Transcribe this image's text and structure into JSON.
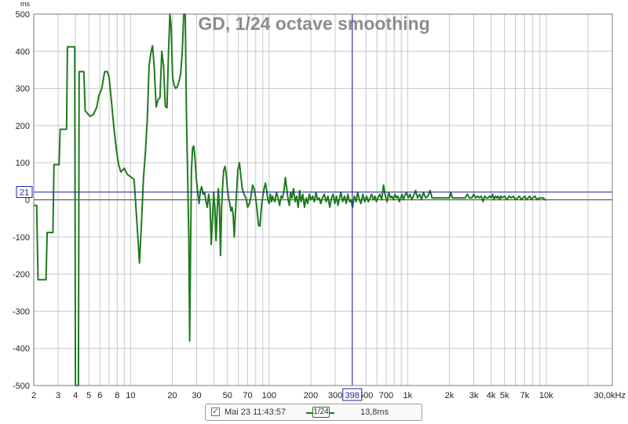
{
  "chart_data": {
    "type": "line",
    "title": "GD, 1/24 octave smoothing",
    "y_unit": "ms",
    "x_unit": "Hz",
    "xscale": "log",
    "xlim": [
      2,
      30000
    ],
    "ylim": [
      -500,
      500
    ],
    "grid": true,
    "y_ticks": [
      500,
      400,
      300,
      200,
      100,
      0,
      -100,
      -200,
      -300,
      -400,
      -500
    ],
    "y_tick_labels": [
      "500",
      "400",
      "300",
      "200",
      "100",
      "0",
      "-100",
      "-200",
      "-300",
      "-400",
      "-500"
    ],
    "x_ticks": [
      {
        "v": 2,
        "label": "2"
      },
      {
        "v": 3,
        "label": "3"
      },
      {
        "v": 4,
        "label": "4"
      },
      {
        "v": 5,
        "label": "5"
      },
      {
        "v": 6,
        "label": "6"
      },
      {
        "v": 8,
        "label": "8"
      },
      {
        "v": 10,
        "label": "10"
      },
      {
        "v": 20,
        "label": "20"
      },
      {
        "v": 30,
        "label": "30"
      },
      {
        "v": 50,
        "label": "50"
      },
      {
        "v": 70,
        "label": "70"
      },
      {
        "v": 100,
        "label": "100"
      },
      {
        "v": 200,
        "label": "200"
      },
      {
        "v": 300,
        "label": "300"
      },
      {
        "v": 500,
        "label": "500"
      },
      {
        "v": 700,
        "label": "700"
      },
      {
        "v": 1000,
        "label": "1k"
      },
      {
        "v": 2000,
        "label": "2k"
      },
      {
        "v": 3000,
        "label": "3k"
      },
      {
        "v": 4000,
        "label": "4k"
      },
      {
        "v": 5000,
        "label": "5k"
      },
      {
        "v": 7000,
        "label": "7k"
      },
      {
        "v": 10000,
        "label": "10k"
      },
      {
        "v": 30000,
        "label": "30,0kHz"
      }
    ],
    "cursor": {
      "x": 398,
      "y": 21,
      "x_label": "398",
      "y_label": "21"
    },
    "series": [
      {
        "name": "1/24",
        "color": "#1f7a1f",
        "points": [
          [
            2.0,
            -15
          ],
          [
            2.1,
            -15
          ],
          [
            2.15,
            -215
          ],
          [
            2.3,
            -215
          ],
          [
            2.45,
            -215
          ],
          [
            2.5,
            -88
          ],
          [
            2.75,
            -88
          ],
          [
            2.8,
            95
          ],
          [
            3.05,
            95
          ],
          [
            3.1,
            190
          ],
          [
            3.45,
            190
          ],
          [
            3.5,
            412
          ],
          [
            3.85,
            412
          ],
          [
            3.95,
            412
          ],
          [
            4.0,
            -500
          ],
          [
            4.2,
            -500
          ],
          [
            4.25,
            345
          ],
          [
            4.6,
            345
          ],
          [
            4.7,
            240
          ],
          [
            4.9,
            232
          ],
          [
            5.1,
            225
          ],
          [
            5.4,
            230
          ],
          [
            5.7,
            250
          ],
          [
            5.9,
            280
          ],
          [
            6.2,
            300
          ],
          [
            6.5,
            345
          ],
          [
            6.8,
            345
          ],
          [
            7.0,
            330
          ],
          [
            7.3,
            260
          ],
          [
            7.6,
            190
          ],
          [
            7.9,
            135
          ],
          [
            8.2,
            95
          ],
          [
            8.5,
            75
          ],
          [
            9.0,
            85
          ],
          [
            9.5,
            68
          ],
          [
            10.0,
            62
          ],
          [
            10.6,
            55
          ],
          [
            11.2,
            -80
          ],
          [
            11.6,
            -170
          ],
          [
            12.0,
            -60
          ],
          [
            12.4,
            60
          ],
          [
            12.8,
            130
          ],
          [
            13.2,
            215
          ],
          [
            13.6,
            360
          ],
          [
            14.0,
            395
          ],
          [
            14.4,
            415
          ],
          [
            14.8,
            360
          ],
          [
            15.3,
            250
          ],
          [
            15.8,
            270
          ],
          [
            16.3,
            275
          ],
          [
            16.8,
            400
          ],
          [
            17.3,
            360
          ],
          [
            17.8,
            252
          ],
          [
            18.3,
            248
          ],
          [
            18.8,
            400
          ],
          [
            19.2,
            500
          ],
          [
            19.6,
            470
          ],
          [
            20.1,
            330
          ],
          [
            20.6,
            310
          ],
          [
            21.1,
            300
          ],
          [
            21.8,
            305
          ],
          [
            22.4,
            320
          ],
          [
            23.0,
            340
          ],
          [
            23.6,
            400
          ],
          [
            24.2,
            500
          ],
          [
            24.8,
            500
          ],
          [
            25.3,
            230
          ],
          [
            25.8,
            70
          ],
          [
            26.3,
            -100
          ],
          [
            26.7,
            -380
          ],
          [
            27.1,
            -120
          ],
          [
            27.5,
            80
          ],
          [
            28.0,
            140
          ],
          [
            28.6,
            145
          ],
          [
            29.2,
            110
          ],
          [
            29.8,
            60
          ],
          [
            30.5,
            20
          ],
          [
            31.2,
            -10
          ],
          [
            31.9,
            25
          ],
          [
            32.6,
            35
          ],
          [
            33.4,
            15
          ],
          [
            34.2,
            20
          ],
          [
            35.0,
            -5
          ],
          [
            35.8,
            -20
          ],
          [
            36.6,
            15
          ],
          [
            37.4,
            -10
          ],
          [
            38.2,
            -120
          ],
          [
            39.0,
            -50
          ],
          [
            39.8,
            20
          ],
          [
            40.6,
            -20
          ],
          [
            41.4,
            -110
          ],
          [
            42.2,
            -30
          ],
          [
            43.0,
            30
          ],
          [
            43.8,
            -20
          ],
          [
            44.6,
            -150
          ],
          [
            45.4,
            -20
          ],
          [
            46.2,
            40
          ],
          [
            47.0,
            80
          ],
          [
            48.0,
            90
          ],
          [
            49.0,
            70
          ],
          [
            50.0,
            30
          ],
          [
            51.0,
            5
          ],
          [
            52.0,
            -10
          ],
          [
            53.0,
            -30
          ],
          [
            54.0,
            -20
          ],
          [
            55.0,
            -40
          ],
          [
            56.0,
            -100
          ],
          [
            57.0,
            -40
          ],
          [
            58.0,
            10
          ],
          [
            59.5,
            80
          ],
          [
            61.0,
            100
          ],
          [
            62.5,
            65
          ],
          [
            64.0,
            30
          ],
          [
            66.0,
            15
          ],
          [
            68.0,
            5
          ],
          [
            70.0,
            -20
          ],
          [
            72.0,
            -10
          ],
          [
            74.0,
            10
          ],
          [
            76.0,
            40
          ],
          [
            78.0,
            30
          ],
          [
            80.0,
            5
          ],
          [
            82.0,
            -30
          ],
          [
            84.0,
            -70
          ],
          [
            86.0,
            -70
          ],
          [
            88.0,
            -20
          ],
          [
            90.0,
            10
          ],
          [
            92.0,
            30
          ],
          [
            94.0,
            45
          ],
          [
            96.0,
            25
          ],
          [
            98.0,
            0
          ],
          [
            100.0,
            -10
          ],
          [
            102.0,
            15
          ],
          [
            104.0,
            -5
          ],
          [
            106.0,
            10
          ],
          [
            108.0,
            0
          ],
          [
            110.0,
            -5
          ],
          [
            113.0,
            20
          ],
          [
            116.0,
            5
          ],
          [
            119.0,
            -15
          ],
          [
            122.0,
            10
          ],
          [
            125.0,
            5
          ],
          [
            128.0,
            25
          ],
          [
            131.0,
            60
          ],
          [
            134.0,
            30
          ],
          [
            137.0,
            0
          ],
          [
            140.0,
            -15
          ],
          [
            143.0,
            20
          ],
          [
            146.0,
            5
          ],
          [
            150.0,
            30
          ],
          [
            154.0,
            -5
          ],
          [
            158.0,
            10
          ],
          [
            162.0,
            -20
          ],
          [
            166.0,
            25
          ],
          [
            170.0,
            -5
          ],
          [
            175.0,
            15
          ],
          [
            180.0,
            -20
          ],
          [
            185.0,
            5
          ],
          [
            190.0,
            -10
          ],
          [
            195.0,
            15
          ],
          [
            200.0,
            0
          ],
          [
            206.0,
            10
          ],
          [
            212.0,
            -5
          ],
          [
            218.0,
            20
          ],
          [
            224.0,
            0
          ],
          [
            230.0,
            5
          ],
          [
            236.0,
            -10
          ],
          [
            242.0,
            5
          ],
          [
            250.0,
            15
          ],
          [
            258.0,
            -5
          ],
          [
            266.0,
            10
          ],
          [
            274.0,
            -20
          ],
          [
            282.0,
            5
          ],
          [
            290.0,
            15
          ],
          [
            298.0,
            -10
          ],
          [
            306.0,
            10
          ],
          [
            314.0,
            -15
          ],
          [
            322.0,
            5
          ],
          [
            330.0,
            20
          ],
          [
            340.0,
            -5
          ],
          [
            350.0,
            10
          ],
          [
            360.0,
            -10
          ],
          [
            370.0,
            15
          ],
          [
            380.0,
            -5
          ],
          [
            390.0,
            0
          ],
          [
            400.0,
            -20
          ],
          [
            412.0,
            10
          ],
          [
            424.0,
            -5
          ],
          [
            436.0,
            20
          ],
          [
            448.0,
            0
          ],
          [
            460.0,
            -10
          ],
          [
            475.0,
            15
          ],
          [
            490.0,
            -5
          ],
          [
            505.0,
            10
          ],
          [
            520.0,
            -5
          ],
          [
            535.0,
            5
          ],
          [
            550.0,
            15
          ],
          [
            565.0,
            0
          ],
          [
            580.0,
            10
          ],
          [
            595.0,
            -5
          ],
          [
            610.0,
            5
          ],
          [
            630.0,
            15
          ],
          [
            650.0,
            0
          ],
          [
            670.0,
            40
          ],
          [
            690.0,
            10
          ],
          [
            710.0,
            -5
          ],
          [
            730.0,
            20
          ],
          [
            750.0,
            5
          ],
          [
            770.0,
            10
          ],
          [
            790.0,
            0
          ],
          [
            810.0,
            15
          ],
          [
            830.0,
            5
          ],
          [
            850.0,
            10
          ],
          [
            870.0,
            -5
          ],
          [
            890.0,
            5
          ],
          [
            910.0,
            15
          ],
          [
            930.0,
            0
          ],
          [
            950.0,
            10
          ],
          [
            980.0,
            20
          ],
          [
            1010.0,
            5
          ],
          [
            1040.0,
            15
          ],
          [
            1070.0,
            0
          ],
          [
            1100.0,
            10
          ],
          [
            1140.0,
            25
          ],
          [
            1180.0,
            5
          ],
          [
            1220.0,
            15
          ],
          [
            1260.0,
            0
          ],
          [
            1300.0,
            20
          ],
          [
            1350.0,
            5
          ],
          [
            1400.0,
            10
          ],
          [
            1450.0,
            25
          ],
          [
            1500.0,
            5
          ],
          [
            1560.0,
            5
          ],
          [
            1620.0,
            5
          ],
          [
            1700.0,
            5
          ],
          [
            1800.0,
            5
          ],
          [
            1900.0,
            5
          ],
          [
            2000.0,
            5
          ],
          [
            2050.0,
            20
          ],
          [
            2100.0,
            5
          ],
          [
            2200.0,
            5
          ],
          [
            2300.0,
            5
          ],
          [
            2400.0,
            5
          ],
          [
            2500.0,
            5
          ],
          [
            2600.0,
            5
          ],
          [
            2700.0,
            15
          ],
          [
            2800.0,
            5
          ],
          [
            2900.0,
            5
          ],
          [
            3000.0,
            15
          ],
          [
            3100.0,
            5
          ],
          [
            3200.0,
            10
          ],
          [
            3300.0,
            5
          ],
          [
            3400.0,
            10
          ],
          [
            3500.0,
            -5
          ],
          [
            3600.0,
            10
          ],
          [
            3700.0,
            5
          ],
          [
            3800.0,
            5
          ],
          [
            3900.0,
            10
          ],
          [
            4000.0,
            5
          ],
          [
            4100.0,
            15
          ],
          [
            4200.0,
            0
          ],
          [
            4300.0,
            10
          ],
          [
            4400.0,
            5
          ],
          [
            4500.0,
            10
          ],
          [
            4600.0,
            0
          ],
          [
            4700.0,
            10
          ],
          [
            4800.0,
            5
          ],
          [
            5000.0,
            10
          ],
          [
            5200.0,
            0
          ],
          [
            5400.0,
            10
          ],
          [
            5600.0,
            5
          ],
          [
            5800.0,
            10
          ],
          [
            6000.0,
            0
          ],
          [
            6200.0,
            5
          ],
          [
            6400.0,
            10
          ],
          [
            6600.0,
            0
          ],
          [
            6800.0,
            5
          ],
          [
            7000.0,
            10
          ],
          [
            7200.0,
            0
          ],
          [
            7400.0,
            5
          ],
          [
            7600.0,
            10
          ],
          [
            7800.0,
            0
          ],
          [
            8000.0,
            5
          ],
          [
            8300.0,
            10
          ],
          [
            8600.0,
            0
          ],
          [
            8900.0,
            5
          ],
          [
            9200.0,
            5
          ],
          [
            9500.0,
            5
          ],
          [
            9800.0,
            0
          ],
          [
            10000.0,
            0
          ]
        ]
      }
    ]
  },
  "legend": {
    "checked_glyph": "✓",
    "date": "Mai 23 11:43:57",
    "smoothing_label": "1/24",
    "value": "13,8ms",
    "line_color": "#1f7a1f"
  },
  "colors": {
    "curve": "#1f7a1f",
    "cursor": "#2020a0",
    "grid": "#c8c8c8",
    "title": "#8c8c8c"
  }
}
